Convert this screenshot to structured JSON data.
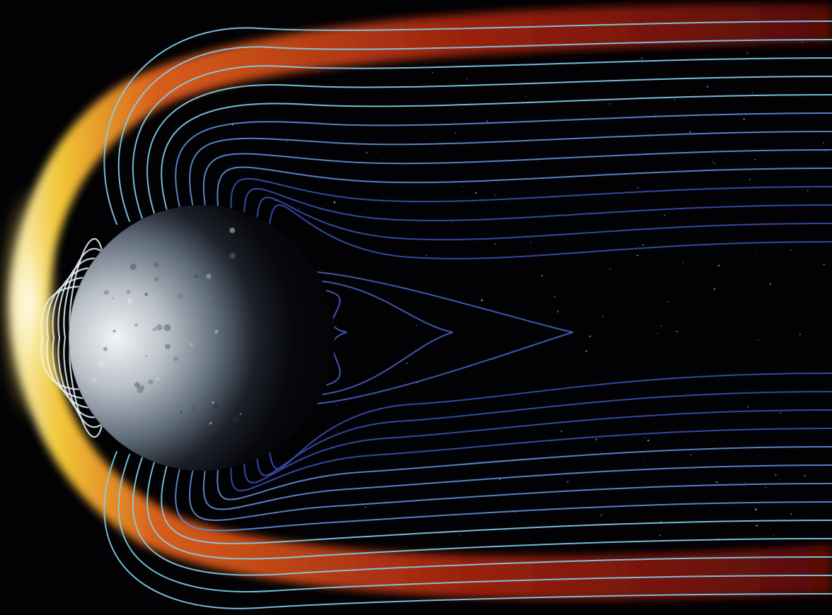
{
  "scene": {
    "subject": "planet-magnetosphere-illustration",
    "colors": {
      "space": "#020205",
      "bow_shock_inner": "#fff7c2",
      "bow_shock_mid": "#ffcc33",
      "bow_shock_outer": "#c0301a",
      "field_line_sunward": "#7fd0f0",
      "field_line_tail": "#3a4fb0",
      "planet_lit": "#e8ecef",
      "planet_mid": "#6d7a88",
      "planet_dark": "#05060a"
    }
  }
}
